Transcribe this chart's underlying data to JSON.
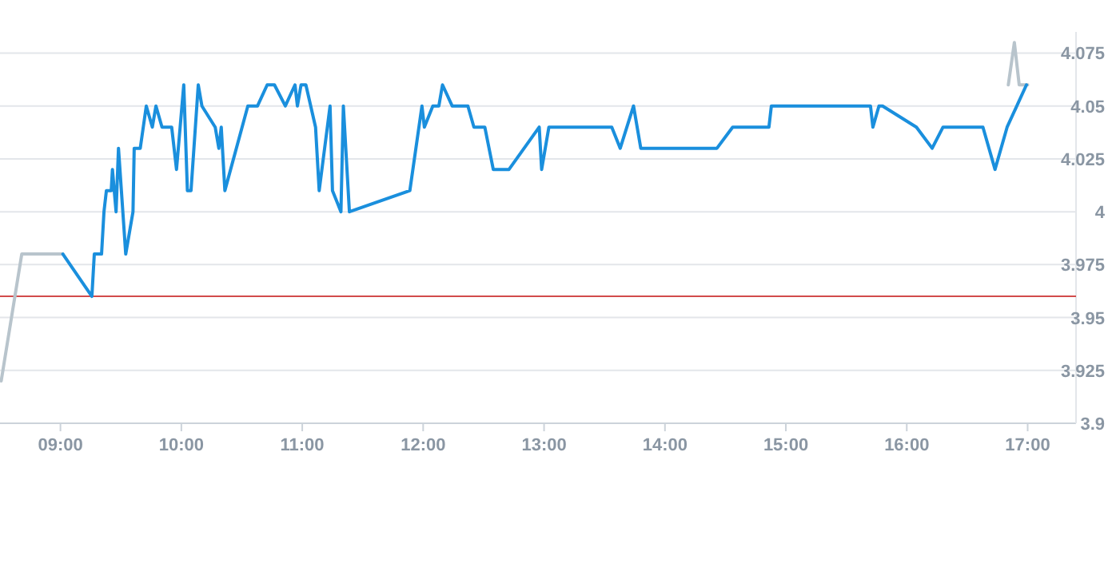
{
  "chart_data": {
    "type": "line",
    "xlim": [
      8.5,
      17.4
    ],
    "ylim": [
      3.9,
      4.085
    ],
    "xticks": [
      {
        "value": 9,
        "label": "09:00"
      },
      {
        "value": 10,
        "label": "10:00"
      },
      {
        "value": 11,
        "label": "11:00"
      },
      {
        "value": 12,
        "label": "12:00"
      },
      {
        "value": 13,
        "label": "13:00"
      },
      {
        "value": 14,
        "label": "14:00"
      },
      {
        "value": 15,
        "label": "15:00"
      },
      {
        "value": 16,
        "label": "16:00"
      },
      {
        "value": 17,
        "label": "17:00"
      }
    ],
    "yticks": [
      3.9,
      3.925,
      3.95,
      3.975,
      4,
      4.025,
      4.05,
      4.075
    ],
    "grid": "y",
    "marker": "none",
    "line_style": "solid",
    "ref_lines": [
      {
        "axis": "y",
        "value": 3.96,
        "color": "#d24b4b"
      }
    ],
    "series": [
      {
        "color": "#b8c4cc",
        "x": [
          8.51,
          8.68,
          9.02
        ],
        "values": [
          3.92,
          3.98,
          3.98
        ]
      },
      {
        "color": "#b8c4cc",
        "x": [
          16.84,
          16.89,
          16.93,
          17.0
        ],
        "values": [
          4.06,
          4.08,
          4.06,
          4.06
        ]
      },
      {
        "color": "#1a8fdd",
        "x": [
          9.02,
          9.26,
          9.28,
          9.34,
          9.36,
          9.38,
          9.42,
          9.43,
          9.46,
          9.48,
          9.54,
          9.6,
          9.61,
          9.66,
          9.71,
          9.76,
          9.79,
          9.84,
          9.92,
          9.96,
          9.99,
          10.02,
          10.05,
          10.08,
          10.14,
          10.17,
          10.28,
          10.31,
          10.33,
          10.36,
          10.55,
          10.63,
          10.71,
          10.77,
          10.86,
          10.94,
          10.96,
          10.99,
          11.03,
          11.11,
          11.14,
          11.23,
          11.25,
          11.32,
          11.34,
          11.39,
          11.89,
          11.99,
          12.01,
          12.08,
          12.13,
          12.16,
          12.24,
          12.37,
          12.42,
          12.51,
          12.58,
          12.71,
          12.96,
          12.98,
          13.04,
          13.56,
          13.63,
          13.74,
          13.8,
          14.43,
          14.56,
          14.86,
          14.88,
          15.7,
          15.72,
          15.77,
          15.8,
          16.08,
          16.21,
          16.3,
          16.63,
          16.73,
          16.83,
          16.99
        ],
        "values": [
          3.98,
          3.96,
          3.98,
          3.98,
          4.0,
          4.01,
          4.01,
          4.02,
          4.0,
          4.03,
          3.98,
          4.0,
          4.03,
          4.03,
          4.05,
          4.04,
          4.05,
          4.04,
          4.04,
          4.02,
          4.04,
          4.06,
          4.01,
          4.01,
          4.06,
          4.05,
          4.04,
          4.03,
          4.04,
          4.01,
          4.05,
          4.05,
          4.06,
          4.06,
          4.05,
          4.06,
          4.05,
          4.06,
          4.06,
          4.04,
          4.01,
          4.05,
          4.01,
          4.0,
          4.05,
          4.0,
          4.01,
          4.05,
          4.04,
          4.05,
          4.05,
          4.06,
          4.05,
          4.05,
          4.04,
          4.04,
          4.02,
          4.02,
          4.04,
          4.02,
          4.04,
          4.04,
          4.03,
          4.05,
          4.03,
          4.03,
          4.04,
          4.04,
          4.05,
          4.05,
          4.04,
          4.05,
          4.05,
          4.04,
          4.03,
          4.04,
          4.04,
          4.02,
          4.04,
          4.06
        ]
      }
    ]
  }
}
